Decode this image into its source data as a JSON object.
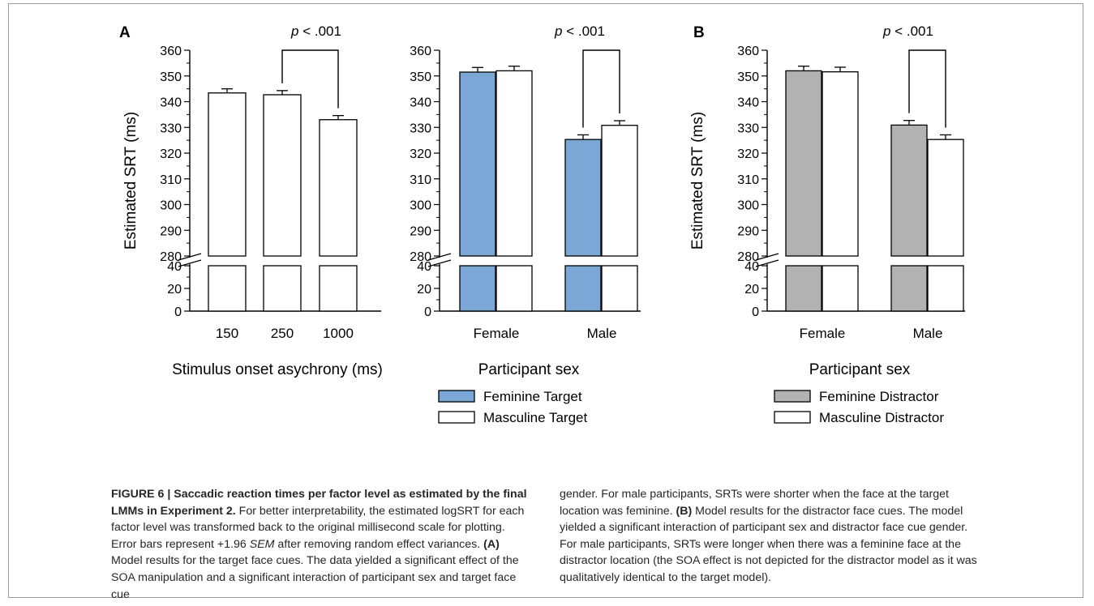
{
  "chart_data": [
    {
      "panel_label": "A",
      "type": "bar",
      "ylabel": "Estimated SRT (ms)",
      "xlabel": "Stimulus onset asychrony (ms)",
      "categories": [
        "150",
        "250",
        "1000"
      ],
      "series": [
        {
          "values": [
            343.4,
            342.7,
            333.0
          ],
          "errors": [
            1.6,
            1.6,
            1.6
          ],
          "color": "#ffffff"
        }
      ],
      "yticks_upper": [
        "360",
        "350",
        "340",
        "330",
        "320",
        "310",
        "300",
        "290",
        "280"
      ],
      "yticks_lower": [
        "40",
        "20",
        "0"
      ],
      "ylim_upper": [
        280,
        360
      ],
      "ylim_lower": [
        0,
        40
      ],
      "axis_break": true,
      "significance": {
        "text": "p < .001",
        "between": [
          "250",
          "1000"
        ]
      }
    },
    {
      "type": "bar",
      "xlabel": "Participant sex",
      "categories": [
        "Female",
        "Male"
      ],
      "series": [
        {
          "name": "Feminine Target",
          "values": [
            351.5,
            325.3
          ],
          "errors": [
            1.8,
            1.8
          ],
          "color": "#7ba7d6"
        },
        {
          "name": "Masculine Target",
          "values": [
            352.0,
            330.8
          ],
          "errors": [
            1.8,
            1.8
          ],
          "color": "#ffffff"
        }
      ],
      "yticks_upper": [
        "360",
        "350",
        "340",
        "330",
        "320",
        "310",
        "300",
        "290",
        "280"
      ],
      "yticks_lower": [
        "40",
        "20",
        "0"
      ],
      "ylim_upper": [
        280,
        360
      ],
      "ylim_lower": [
        0,
        40
      ],
      "axis_break": true,
      "significance": {
        "text": "p < .001",
        "between": [
          "Feminine Target",
          "Masculine Target"
        ],
        "category": "Male"
      },
      "legend": "bottom"
    },
    {
      "panel_label": "B",
      "type": "bar",
      "ylabel": "Estimated SRT (ms)",
      "xlabel": "Participant sex",
      "categories": [
        "Female",
        "Male"
      ],
      "series": [
        {
          "name": "Feminine Distractor",
          "values": [
            352.0,
            330.9
          ],
          "errors": [
            1.8,
            1.8
          ],
          "color": "#b2b2b2"
        },
        {
          "name": "Masculine Distractor",
          "values": [
            351.6,
            325.3
          ],
          "errors": [
            1.8,
            1.8
          ],
          "color": "#ffffff"
        }
      ],
      "yticks_upper": [
        "360",
        "350",
        "340",
        "330",
        "320",
        "310",
        "300",
        "290",
        "280"
      ],
      "yticks_lower": [
        "40",
        "20",
        "0"
      ],
      "ylim_upper": [
        280,
        360
      ],
      "ylim_lower": [
        0,
        40
      ],
      "axis_break": true,
      "significance": {
        "text": "p < .001",
        "between": [
          "Feminine Distractor",
          "Masculine Distractor"
        ],
        "category": "Male"
      },
      "legend": "bottom"
    }
  ],
  "caption": {
    "heading": "FIGURE 6 | Saccadic reaction times per factor level as estimated by the final LMMs in Experiment 2.",
    "part1": " For better interpretability, the estimated logSRT for each factor level was transformed back to the original millisecond scale for plotting. Error bars represent +1.96 ",
    "sem": "SEM",
    "part2": " after removing random effect variances. ",
    "label_a": "(A)",
    "part3": " Model results for the target face cues. The data yielded a significant effect of the SOA manipulation and a significant interaction of participant sex and target face cue gender. For male participants, SRTs were shorter when the face at the target location was feminine. ",
    "label_b": "(B)",
    "part4": " Model results for the distractor face cues. The model yielded a significant interaction of participant sex and distractor face cue gender. For male participants, SRTs were longer when there was a feminine face at the distractor location (the SOA effect is not depicted for the distractor model as it was qualitatively identical to the target model)."
  },
  "colors": {
    "feminine_target": "#7ba7d6",
    "feminine_distractor": "#b2b2b2",
    "masculine": "#ffffff"
  }
}
